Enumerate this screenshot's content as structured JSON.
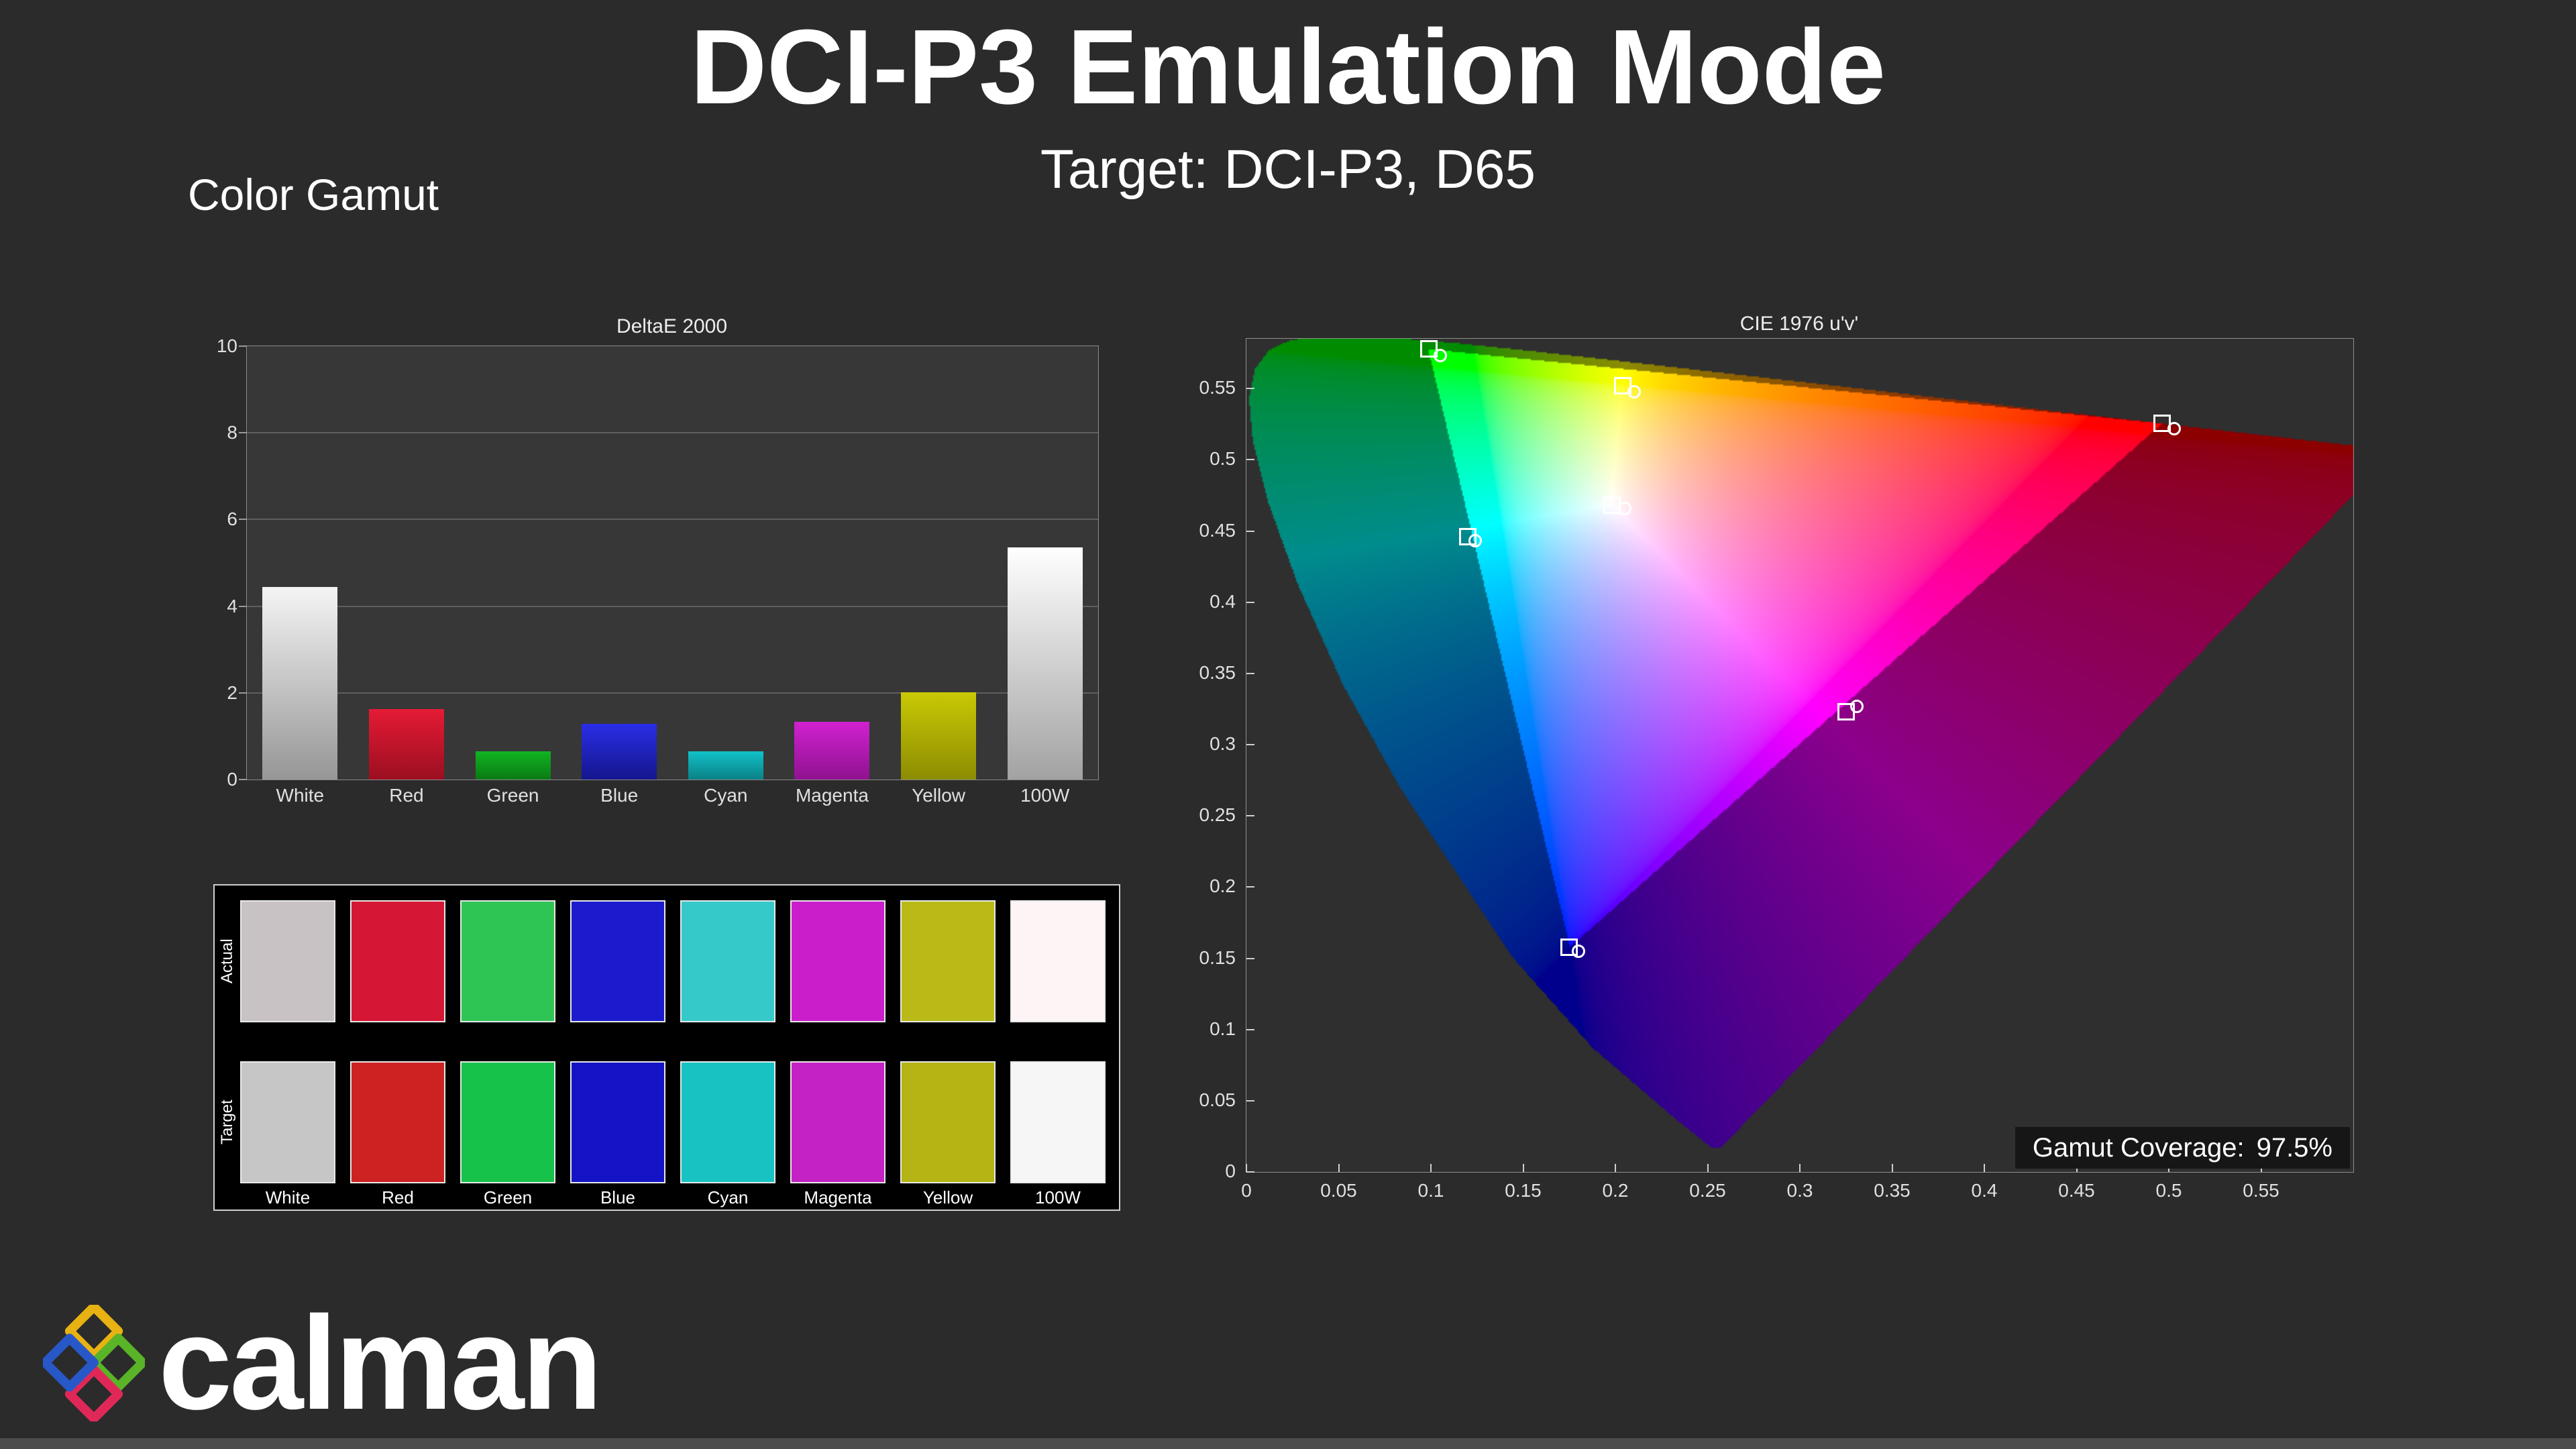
{
  "page": {
    "title": "DCI-P3 Emulation Mode",
    "subtitle": "Target: DCI-P3, D65",
    "section_label": "Color Gamut",
    "logo_text": "calman",
    "background_color": "#2b2b2b"
  },
  "chart_data": [
    {
      "type": "bar",
      "title": "DeltaE 2000",
      "categories": [
        "White",
        "Red",
        "Green",
        "Blue",
        "Cyan",
        "Magenta",
        "Yellow",
        "100W"
      ],
      "values": [
        4.45,
        1.63,
        0.65,
        1.29,
        0.65,
        1.33,
        2.01,
        5.36
      ],
      "xlabel": "",
      "ylabel": "",
      "ylim": [
        0,
        10
      ],
      "yticks": [
        0,
        2,
        4,
        6,
        8,
        10
      ],
      "grid": true,
      "bar_gradients": [
        [
          "#f4f4f4",
          "#969696"
        ],
        [
          "#e51a35",
          "#9b0f20"
        ],
        [
          "#12b422",
          "#0a7a14"
        ],
        [
          "#2a2ee6",
          "#14168c"
        ],
        [
          "#10c2c8",
          "#0a8086"
        ],
        [
          "#d121d1",
          "#8f128f"
        ],
        [
          "#c9c905",
          "#8c8c02"
        ],
        [
          "#ffffff",
          "#a2a2a2"
        ]
      ]
    },
    {
      "type": "scatter",
      "title": "CIE 1976 u'v'",
      "xlim": [
        0,
        0.6
      ],
      "ylim": [
        0,
        0.585
      ],
      "xticks": [
        "0",
        "0.05",
        "0.1",
        "0.15",
        "0.2",
        "0.25",
        "0.3",
        "0.35",
        "0.4",
        "0.45",
        "0.5",
        "0.55"
      ],
      "yticks": [
        "0",
        "0.05",
        "0.1",
        "0.15",
        "0.2",
        "0.25",
        "0.3",
        "0.35",
        "0.4",
        "0.45",
        "0.5",
        "0.55"
      ],
      "gamut_triangle_uv": [
        [
          0.4964,
          0.5255
        ],
        [
          0.0986,
          0.5777
        ],
        [
          0.1754,
          0.1579
        ]
      ],
      "points": [
        {
          "name": "green",
          "target": [
            0.099,
            0.578
          ],
          "measured": [
            0.105,
            0.573
          ]
        },
        {
          "name": "yellow",
          "target": [
            0.204,
            0.552
          ],
          "measured": [
            0.21,
            0.548
          ]
        },
        {
          "name": "red",
          "target": [
            0.4964,
            0.5255
          ],
          "measured": [
            0.503,
            0.522
          ]
        },
        {
          "name": "white",
          "target": [
            0.198,
            0.468
          ],
          "measured": [
            0.205,
            0.466
          ]
        },
        {
          "name": "cyan",
          "target": [
            0.12,
            0.446
          ],
          "measured": [
            0.124,
            0.443
          ]
        },
        {
          "name": "magenta",
          "target": [
            0.325,
            0.323
          ],
          "measured": [
            0.331,
            0.327
          ]
        },
        {
          "name": "blue",
          "target": [
            0.175,
            0.158
          ],
          "measured": [
            0.18,
            0.155
          ]
        }
      ],
      "gamut_coverage_label": "Gamut Coverage:",
      "gamut_coverage_value": "97.5%",
      "legend": "none"
    }
  ],
  "swatches": {
    "row_labels": [
      "Actual",
      "Target"
    ],
    "col_labels": [
      "White",
      "Red",
      "Green",
      "Blue",
      "Cyan",
      "Magenta",
      "Yellow",
      "100W"
    ],
    "rows": [
      [
        "#c9c2c4",
        "#d51635",
        "#2fc554",
        "#1b1bcd",
        "#36c9c9",
        "#cb1ecb",
        "#b9b917",
        "#fdf4f6"
      ],
      [
        "#c6c6c6",
        "#cd2222",
        "#17c24b",
        "#1414c6",
        "#17c2c2",
        "#c422c4",
        "#b4b414",
        "#f6f6f6"
      ]
    ]
  },
  "logo_icon_colors": {
    "top": "#e8b212",
    "right": "#5ab428",
    "bottom": "#e02858",
    "left": "#2858c8"
  }
}
